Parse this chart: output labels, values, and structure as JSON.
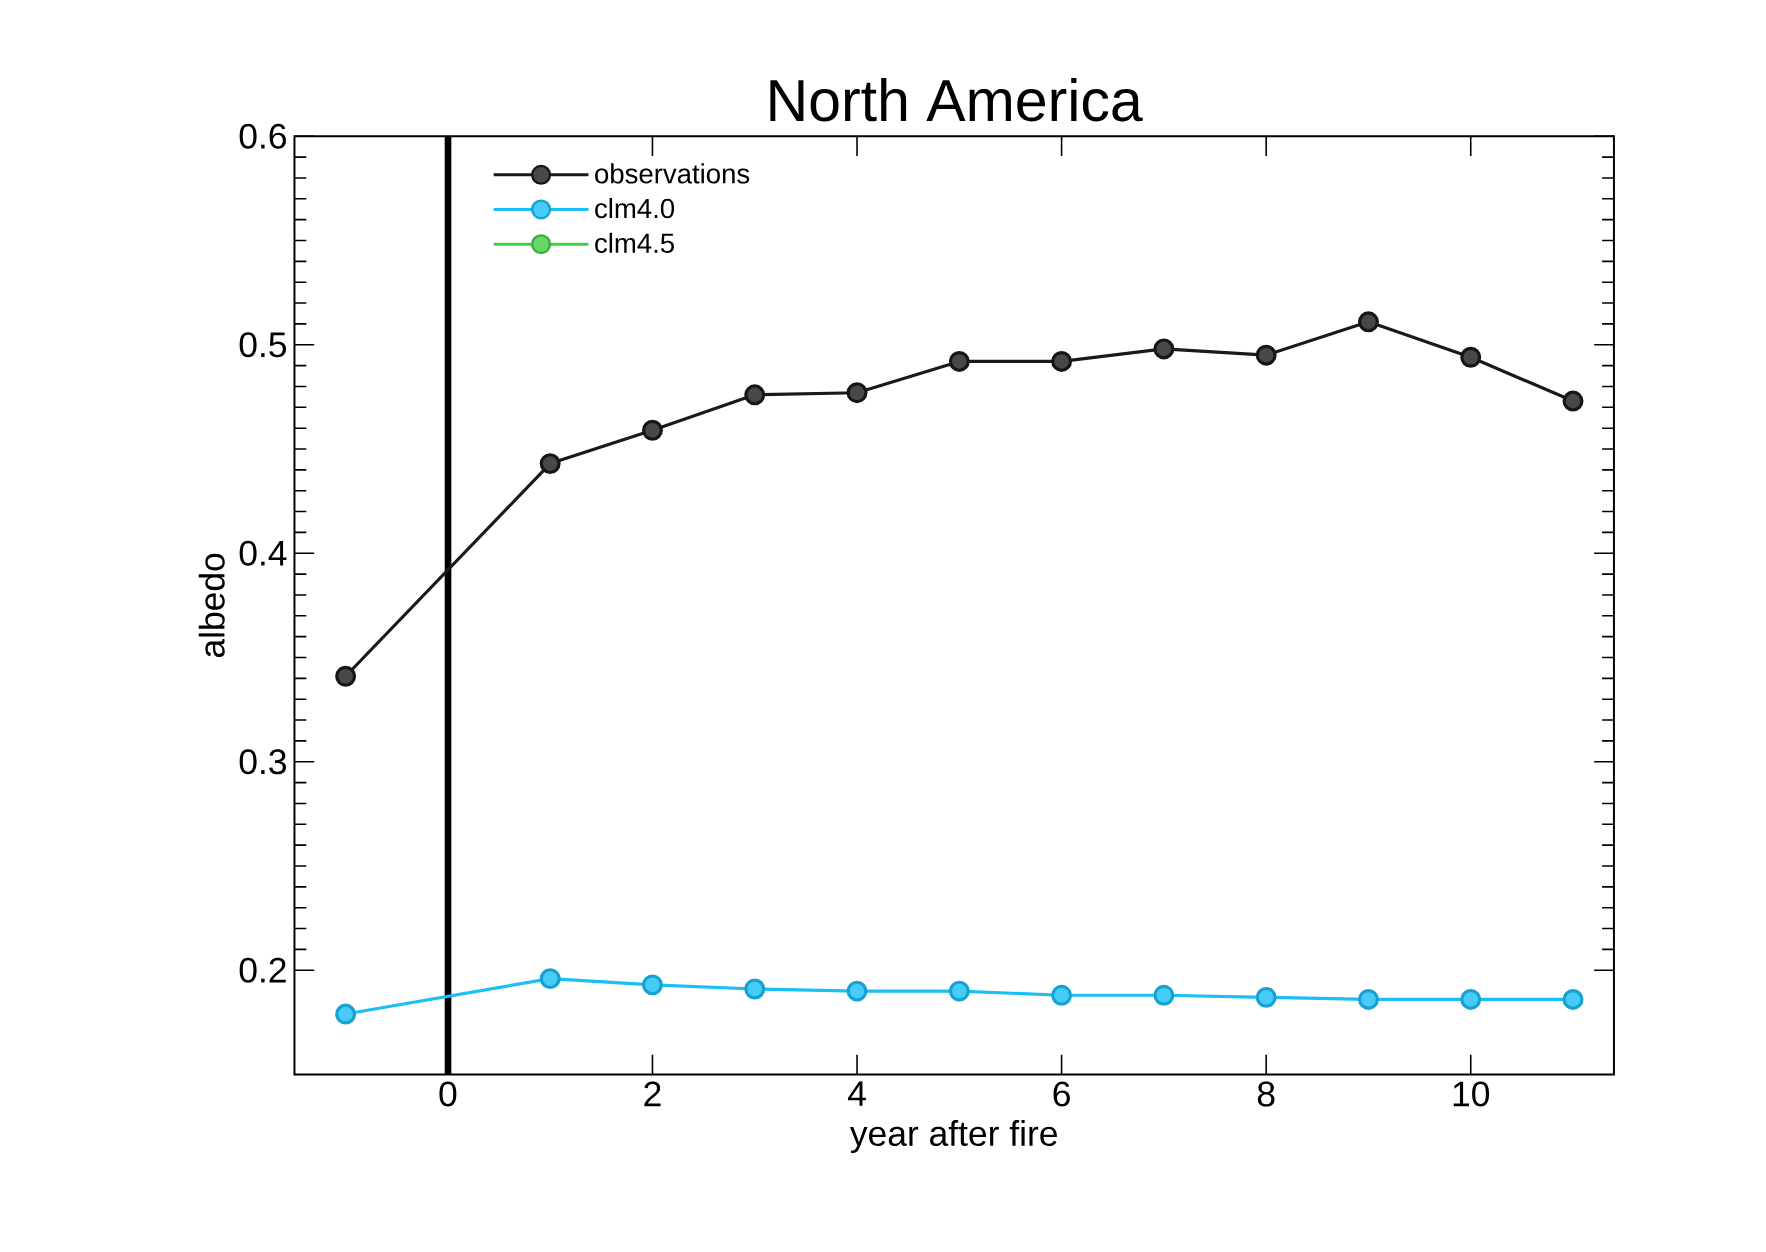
{
  "chart_data": {
    "type": "line",
    "title": "North America",
    "xlabel": "year after fire",
    "ylabel": "albedo",
    "x": [
      -1,
      1,
      2,
      3,
      4,
      5,
      6,
      7,
      8,
      9,
      10,
      11
    ],
    "xlim": [
      -1.5,
      11.4
    ],
    "xticks": [
      0,
      2,
      4,
      6,
      8,
      10
    ],
    "ylim": [
      0.15,
      0.6
    ],
    "yticks": [
      0.2,
      0.3,
      0.4,
      0.5,
      0.6
    ],
    "series": [
      {
        "name": "observations",
        "color": "#1a1a1a",
        "values": [
          0.341,
          0.443,
          0.459,
          0.476,
          0.477,
          0.492,
          0.492,
          0.498,
          0.495,
          0.511,
          0.494,
          0.473
        ]
      },
      {
        "name": "clm4.0",
        "color": "#19bff5",
        "values": [
          0.179,
          0.196,
          0.193,
          0.191,
          0.19,
          0.19,
          0.188,
          0.188,
          0.187,
          0.186,
          0.186,
          0.186
        ]
      },
      {
        "name": "clm4.5",
        "color": "#44cc44",
        "values": [
          null,
          null,
          null,
          null,
          null,
          null,
          null,
          null,
          null,
          null,
          null,
          null
        ]
      }
    ],
    "ref_lines": [
      {
        "axis": "x",
        "value": 0,
        "color": "#000000",
        "line_style": "solid"
      }
    ],
    "marker": "circle",
    "line_style": "solid",
    "legend": "top left",
    "grid": false
  }
}
